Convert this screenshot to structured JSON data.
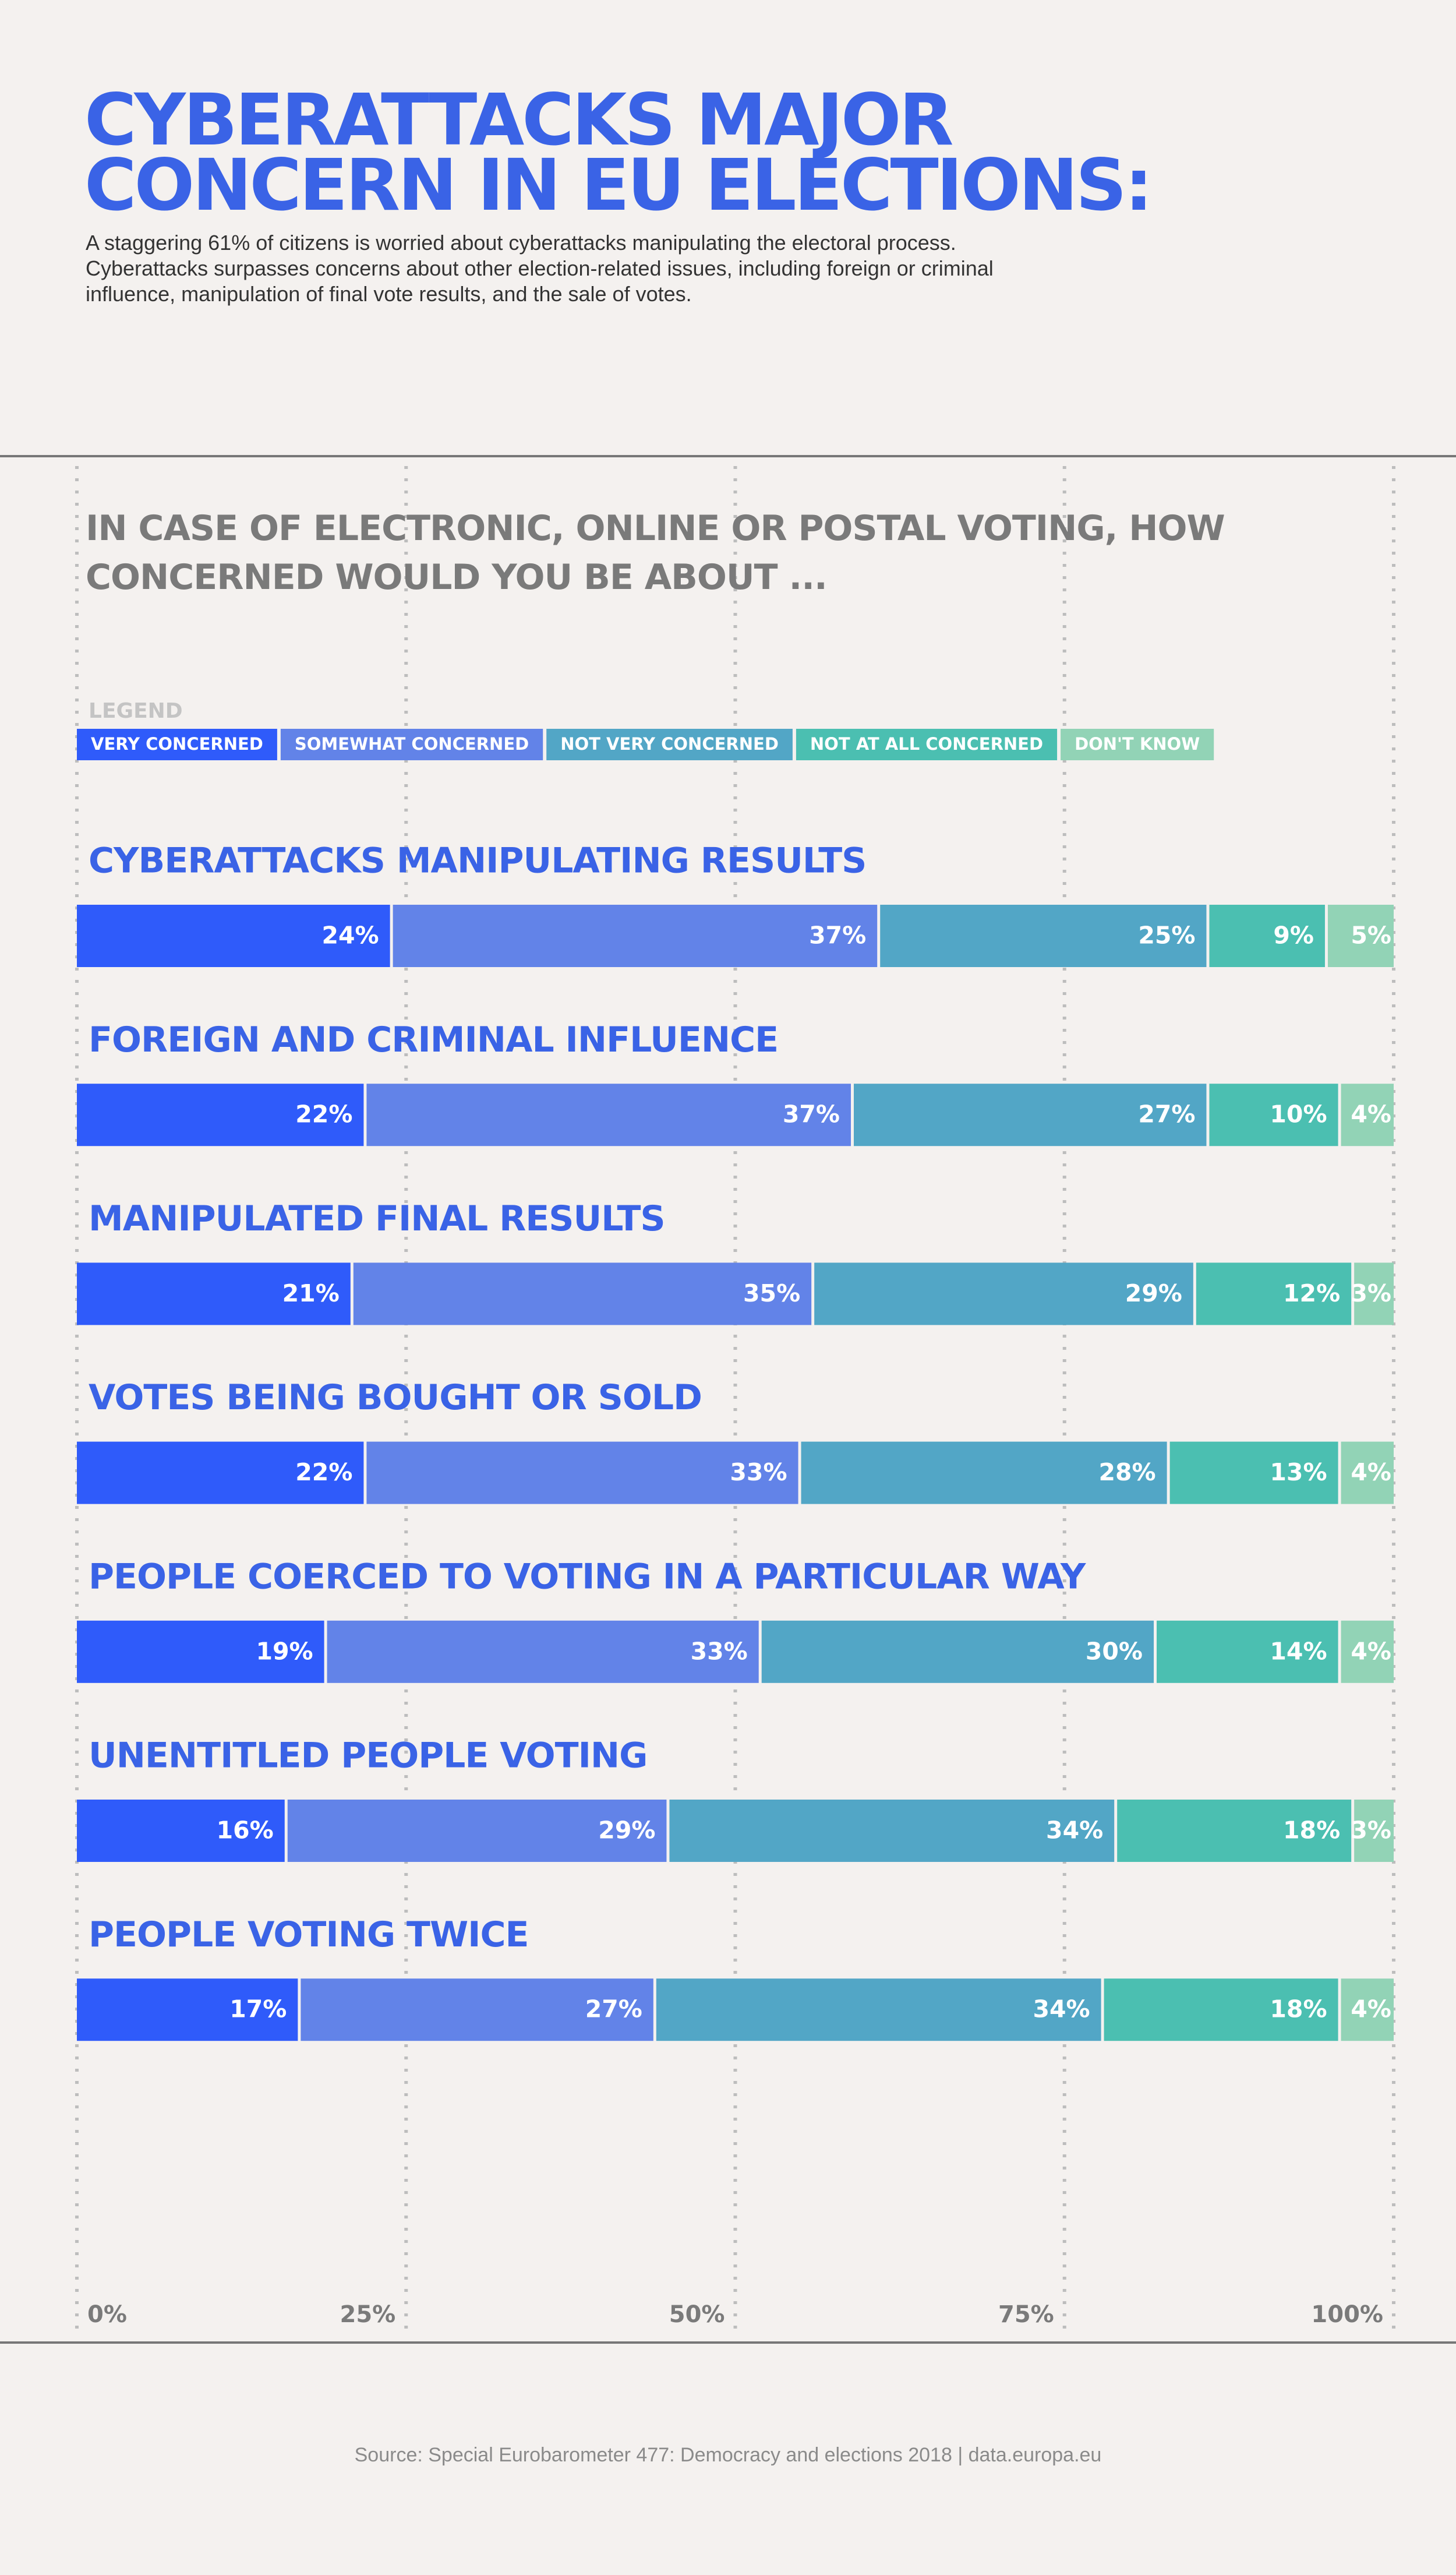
{
  "chart_data": {
    "type": "bar",
    "orientation": "horizontal",
    "stacked": true,
    "title": "CYBERATTACKS MAJOR CONCERN IN EU ELECTIONS:",
    "subtitle": "A staggering 61% of citizens is worried about cyberattacks manipulating the electoral process. Cyberattacks surpasses concerns about other election-related issues, including foreign or criminal influence, manipulation of final vote results, and the sale of votes.",
    "question": "IN CASE OF ELECTRONIC, ONLINE OR POSTAL VOTING, HOW CONCERNED WOULD YOU BE ABOUT ...",
    "legend_title": "LEGEND",
    "source": "Source: Special Eurobarometer 477: Democracy and elections 2018 | data.europa.eu",
    "categories": [
      "CYBERATTACKS MANIPULATING RESULTS",
      "FOREIGN AND CRIMINAL INFLUENCE",
      "MANIPULATED FINAL RESULTS",
      "VOTES BEING BOUGHT OR SOLD",
      "PEOPLE COERCED TO VOTING IN A PARTICULAR WAY",
      "UNENTITLED PEOPLE VOTING",
      "PEOPLE VOTING TWICE"
    ],
    "series": [
      {
        "name": "VERY CONCERNED",
        "color": "#2f5bfa",
        "values": [
          24,
          22,
          21,
          22,
          19,
          16,
          17
        ],
        "value_labels": [
          "24%",
          "22%",
          "21%",
          "22%",
          "19%",
          "16%",
          "17%"
        ]
      },
      {
        "name": "SOMEWHAT CONCERNED",
        "color": "#6283e8",
        "values": [
          37,
          37,
          35,
          33,
          33,
          29,
          27
        ],
        "value_labels": [
          "37%",
          "37%",
          "35%",
          "33%",
          "33%",
          "29%",
          "27%"
        ]
      },
      {
        "name": "NOT VERY CONCERNED",
        "color": "#52a6c6",
        "values": [
          25,
          27,
          29,
          28,
          30,
          34,
          34
        ],
        "value_labels": [
          "25%",
          "27%",
          "29%",
          "28%",
          "30%",
          "34%",
          "34%"
        ]
      },
      {
        "name": "NOT AT ALL CONCERNED",
        "color": "#4bbfb1",
        "values": [
          9,
          10,
          12,
          13,
          14,
          18,
          18
        ],
        "value_labels": [
          "9%",
          "10%",
          "12%",
          "13%",
          "14%",
          "18%",
          "18%"
        ]
      },
      {
        "name": "DON'T KNOW",
        "color": "#92d3b6",
        "values": [
          5,
          4,
          3,
          4,
          4,
          3,
          4
        ],
        "value_labels": [
          "5%",
          "4%",
          "3%",
          "4%",
          "4%",
          "3%",
          "4%"
        ]
      }
    ],
    "xlim": [
      0,
      100
    ],
    "xticks": [
      {
        "value": 0,
        "label": "0%"
      },
      {
        "value": 25,
        "label": "25%"
      },
      {
        "value": 50,
        "label": "50%"
      },
      {
        "value": 75,
        "label": "75%"
      },
      {
        "value": 100,
        "label": "100%"
      }
    ],
    "grid": true
  }
}
